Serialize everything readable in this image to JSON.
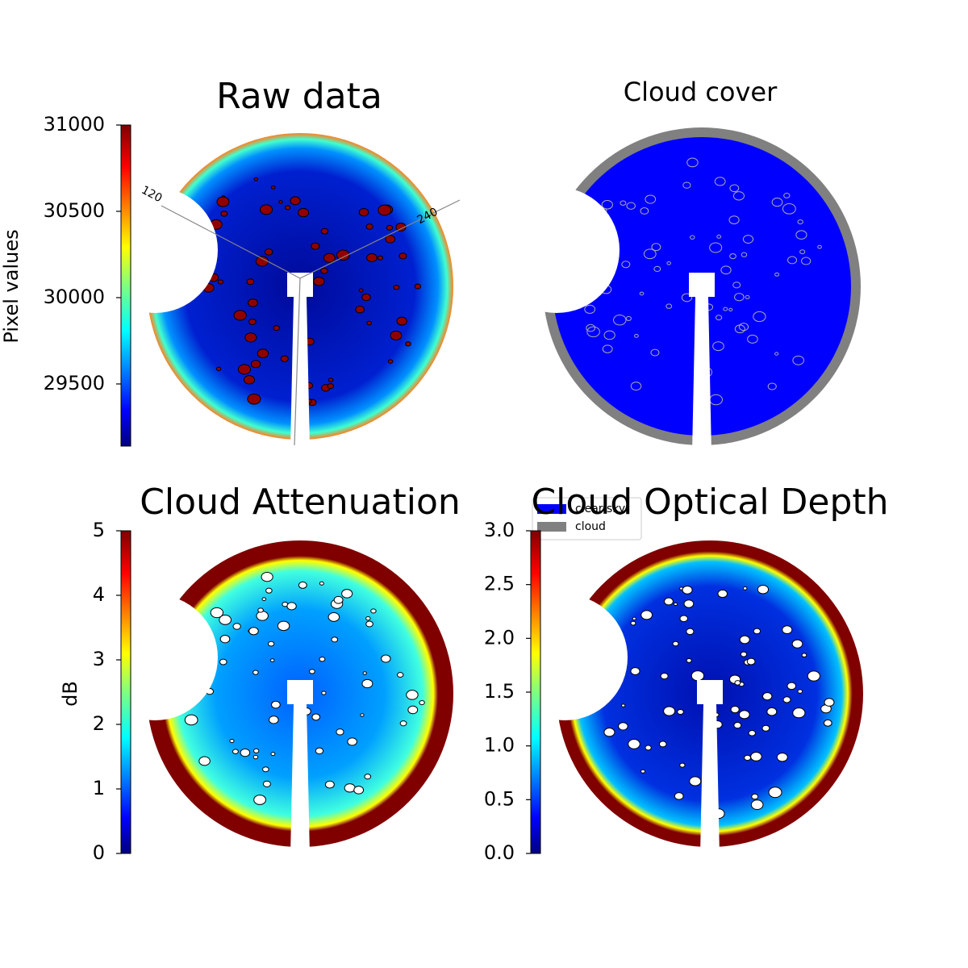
{
  "chart_data": [
    {
      "type": "image",
      "title": "Raw data",
      "colorbar_label": "Pixel values",
      "clim": [
        29140,
        31000
      ],
      "cticks": [
        29500,
        30000,
        30500,
        31000
      ],
      "colormap": "jet",
      "annotations": [
        "120",
        "240"
      ]
    },
    {
      "type": "mask",
      "title": "Cloud cover",
      "series": [
        {
          "name": "clear sky",
          "color": "#0000ff"
        },
        {
          "name": "cloud",
          "color": "#808080"
        }
      ]
    },
    {
      "type": "image",
      "title": "Cloud Attenuation",
      "colorbar_label": "dB",
      "clim": [
        0,
        5
      ],
      "cticks": [
        0,
        1,
        2,
        3,
        4,
        5
      ],
      "colormap": "jet"
    },
    {
      "type": "image",
      "title": "Cloud Optical Depth",
      "clim": [
        0,
        3
      ],
      "cticks": [
        {
          "value": 0,
          "label": "0.0"
        },
        0.5,
        {
          "value": 1,
          "label": "1.0"
        },
        1.5,
        {
          "value": 2,
          "label": "2.0"
        },
        2.5,
        {
          "value": 3,
          "label": "3.0"
        }
      ],
      "colormap": "jet"
    }
  ]
}
